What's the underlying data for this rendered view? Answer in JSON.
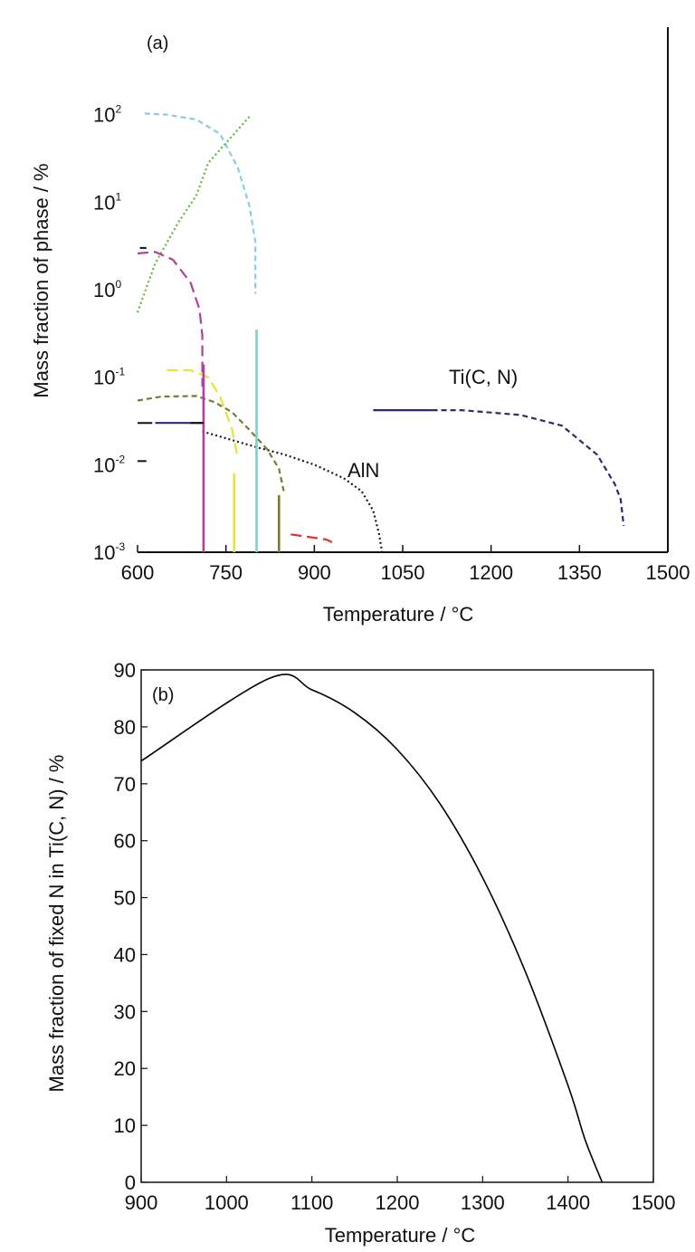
{
  "chart_data": [
    {
      "panel": "(a)",
      "type": "line",
      "xlabel": "Temperature / °C",
      "ylabel": "Mass fraction of phase / %",
      "xlim": [
        600,
        1500
      ],
      "x_ticks": [
        "600",
        "750",
        "900",
        "1050",
        "1200",
        "1350",
        "1500"
      ],
      "y_scale": "log",
      "ylim": [
        0.001,
        1000
      ],
      "y_ticks": [
        {
          "value": 0.001,
          "base": "10",
          "exp": "-3"
        },
        {
          "value": 0.01,
          "base": "10",
          "exp": "-2"
        },
        {
          "value": 0.1,
          "base": "10",
          "exp": "-1"
        },
        {
          "value": 1,
          "base": "10",
          "exp": "0"
        },
        {
          "value": 10,
          "base": "10",
          "exp": "1"
        },
        {
          "value": 100,
          "base": "10",
          "exp": "2"
        }
      ],
      "annotations": [
        "AlN",
        "Ti(C, N)"
      ],
      "series": [
        {
          "color": "#89cde0",
          "dash": "dash",
          "points": [
            [
              612,
              103
            ],
            [
              650,
              100
            ],
            [
              700,
              88
            ],
            [
              740,
              60
            ],
            [
              770,
              25
            ],
            [
              790,
              9
            ],
            [
              800,
              3.5
            ],
            [
              800,
              0.9
            ]
          ]
        },
        {
          "color": "#5fb83a",
          "dash": "dot",
          "points": [
            [
              600,
              0.55
            ],
            [
              630,
              2
            ],
            [
              670,
              6
            ],
            [
              700,
              12
            ],
            [
              720,
              28
            ],
            [
              790,
              95
            ]
          ]
        },
        {
          "color": "#b040a0",
          "dash": "longdash",
          "points": [
            [
              600,
              2.6
            ],
            [
              630,
              2.7
            ],
            [
              660,
              2.2
            ],
            [
              690,
              1.2
            ],
            [
              705,
              0.6
            ],
            [
              710,
              0.3
            ],
            [
              710,
              0.08
            ],
            [
              713,
              0.08
            ]
          ]
        },
        {
          "color": "#e7e33a",
          "dash": "longdash",
          "points": [
            [
              650,
              0.12
            ],
            [
              690,
              0.12
            ],
            [
              720,
              0.1
            ],
            [
              740,
              0.06
            ],
            [
              760,
              0.026
            ],
            [
              770,
              0.012
            ]
          ]
        },
        {
          "color": "#7a7a2a",
          "dash": "dash",
          "points": [
            [
              600,
              0.054
            ],
            [
              640,
              0.06
            ],
            [
              700,
              0.061
            ],
            [
              730,
              0.052
            ],
            [
              760,
              0.04
            ],
            [
              790,
              0.025
            ],
            [
              820,
              0.015
            ],
            [
              840,
              0.009
            ],
            [
              848,
              0.005
            ]
          ]
        },
        {
          "color": "#2f2a70",
          "dash": "solid",
          "points": [
            [
              630,
              0.03
            ],
            [
              710,
              0.03
            ]
          ]
        },
        {
          "color": "#1a1a1a",
          "dash": "dot",
          "points": [
            [
              710,
              0.024
            ],
            [
              750,
              0.02
            ],
            [
              800,
              0.016
            ],
            [
              850,
              0.013
            ],
            [
              900,
              0.01
            ],
            [
              950,
              0.007
            ],
            [
              980,
              0.005
            ],
            [
              1000,
              0.003
            ],
            [
              1010,
              0.0016
            ],
            [
              1015,
              0.001
            ]
          ]
        },
        {
          "color": "#2f2a70",
          "dash": "solid",
          "points": [
            [
              1000,
              0.042
            ],
            [
              1100,
              0.042
            ]
          ]
        },
        {
          "color": "#2f2a70",
          "dash": "dash",
          "points": [
            [
              1100,
              0.042
            ],
            [
              1150,
              0.042
            ],
            [
              1250,
              0.037
            ],
            [
              1320,
              0.028
            ],
            [
              1380,
              0.013
            ],
            [
              1410,
              0.006
            ],
            [
              1420,
              0.004
            ],
            [
              1425,
              0.002
            ]
          ]
        },
        {
          "color": "#e03030",
          "dash": "longdash",
          "points": [
            [
              860,
              0.0016
            ],
            [
              920,
              0.0014
            ],
            [
              930,
              0.0013
            ]
          ]
        }
      ],
      "vertical_lines": [
        {
          "color": "#b040a0",
          "x": 712,
          "ymin": 0.001,
          "ymax": 0.14
        },
        {
          "color": "#e7e33a",
          "x": 764,
          "ymin": 0.001,
          "ymax": 0.008
        },
        {
          "color": "#7fd0d0",
          "x": 802,
          "ymin": 0.001,
          "ymax": 0.35
        },
        {
          "color": "#7a7a2a",
          "x": 840,
          "ymin": 0.001,
          "ymax": 0.0045
        }
      ],
      "black_dashes": [
        {
          "y": 3.0,
          "x0": 604,
          "x1": 615
        },
        {
          "y": 0.03,
          "x0": 600,
          "x1": 625
        },
        {
          "y": 0.03,
          "x0": 690,
          "x1": 712
        },
        {
          "y": 0.011,
          "x0": 600,
          "x1": 615
        },
        {
          "y": 0.001,
          "x0": 600,
          "x1": 618
        }
      ]
    },
    {
      "panel": "(b)",
      "type": "line",
      "xlabel": "Temperature / °C",
      "ylabel": "Mass fraction of fixed N in Ti(C, N) / %",
      "xlim": [
        900,
        1500
      ],
      "ylim": [
        0,
        90
      ],
      "x_ticks": [
        "900",
        "1000",
        "1100",
        "1200",
        "1300",
        "1400",
        "1500"
      ],
      "y_ticks": [
        "0",
        "10",
        "20",
        "30",
        "40",
        "50",
        "60",
        "70",
        "80",
        "90"
      ],
      "series": [
        {
          "color": "#000000",
          "x": [
            900,
            1050,
            1100,
            1150,
            1200,
            1250,
            1300,
            1350,
            1400,
            1420,
            1440
          ],
          "y": [
            74,
            88.5,
            86.5,
            82.5,
            76,
            66.5,
            53.5,
            37,
            17,
            7.5,
            0
          ]
        }
      ]
    }
  ]
}
